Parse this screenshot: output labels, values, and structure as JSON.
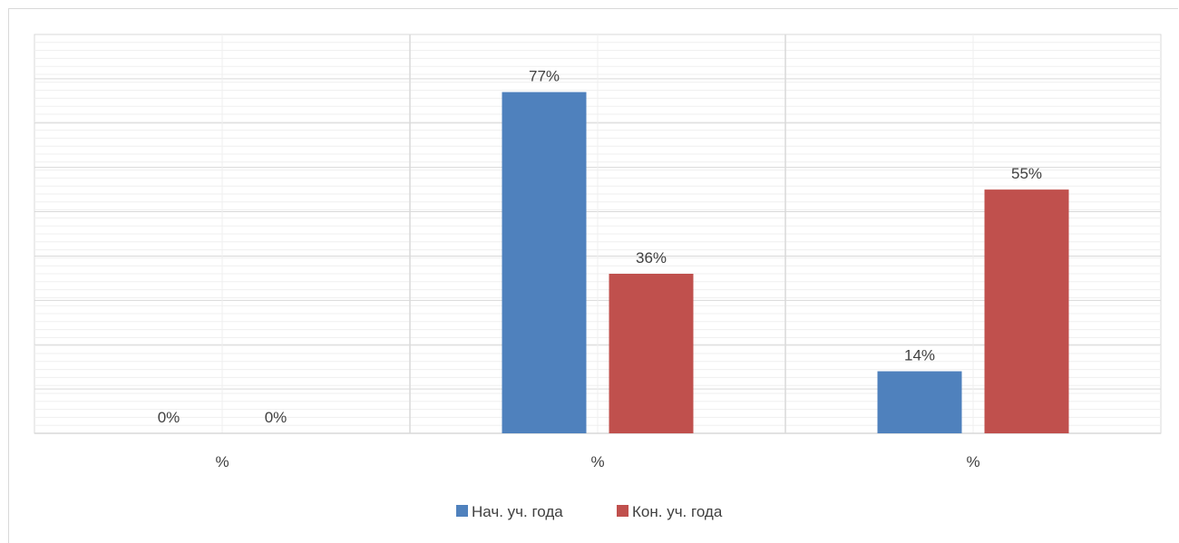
{
  "chart_data": {
    "type": "bar",
    "categories": [
      "%",
      "%",
      "%"
    ],
    "series": [
      {
        "name": "Нач. уч. года",
        "values": [
          0,
          77,
          14
        ],
        "labels": [
          "0%",
          "77%",
          "14%"
        ],
        "color": "#4f81bd"
      },
      {
        "name": "Кон. уч. года",
        "values": [
          0,
          36,
          55
        ],
        "labels": [
          "0%",
          "36%",
          "55%"
        ],
        "color": "#c0504d"
      }
    ],
    "ylim": [
      0,
      90
    ],
    "grid": true,
    "legend_position": "bottom",
    "title": "",
    "xlabel": "",
    "ylabel": ""
  }
}
